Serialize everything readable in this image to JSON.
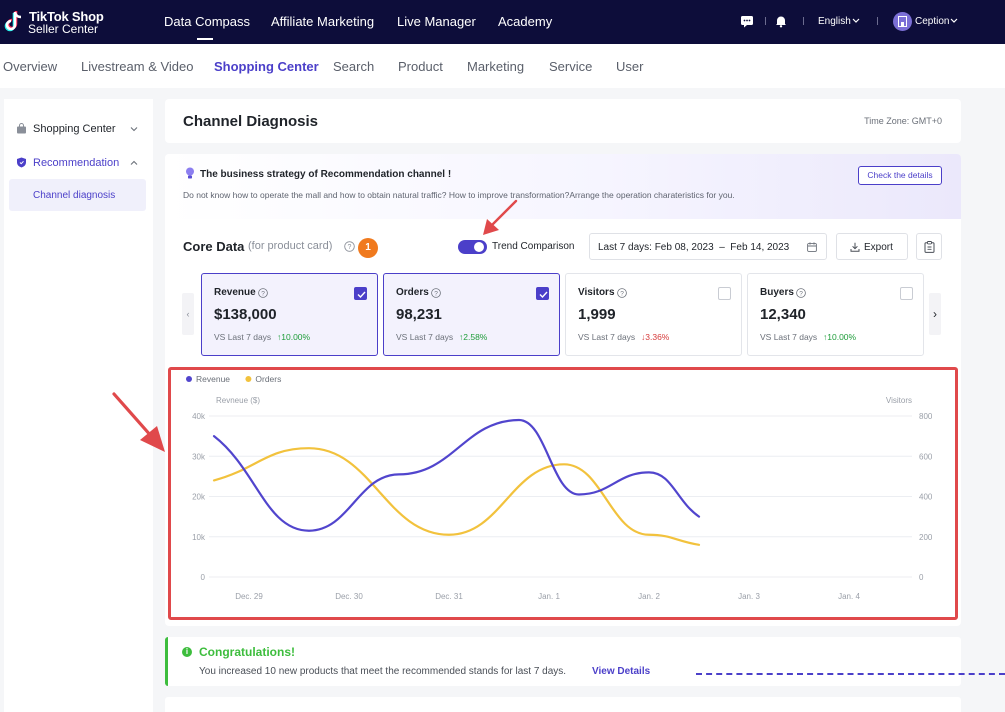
{
  "topbar": {
    "logo_line1": "TikTok Shop",
    "logo_line2": "Seller Center",
    "nav": [
      "Data Compass",
      "Affiliate Marketing",
      "Live Manager",
      "Academy"
    ],
    "active_nav": "Data Compass",
    "language": "English",
    "user": "Ception"
  },
  "subnav": {
    "items": [
      "Overview",
      "Livestream & Video",
      "Shopping Center",
      "Search",
      "Product",
      "Marketing",
      "Service",
      "User"
    ],
    "active": "Shopping Center"
  },
  "sidebar": {
    "items": [
      {
        "label": "Shopping Center",
        "icon": "bag-icon",
        "expanded": false
      },
      {
        "label": "Recommendation",
        "icon": "shield-icon",
        "expanded": true
      }
    ],
    "sub_item": "Channel diagnosis"
  },
  "page": {
    "title": "Channel Diagnosis",
    "timezone": "Time Zone: GMT+0"
  },
  "banner": {
    "title": "The business strategy of Recommendation channel !",
    "description": "Do not know how to operate the mall and how to obtain natural traffic? How to improve transformation?Arrange the operation charateristics for you.",
    "button": "Check the details"
  },
  "core": {
    "title": "Core Data",
    "subtitle": "(for product card)",
    "badge": "1",
    "trend_label": "Trend Comparison",
    "trend_on": true,
    "date_range": "Last 7 days: Feb 08, 2023  –  Feb 14, 2023",
    "export": "Export",
    "prev_arrow": "‹",
    "next_arrow": "›"
  },
  "metrics": [
    {
      "label": "Revenue",
      "value": "$138,000",
      "vs": "VS Last 7 days",
      "change": "10.00%",
      "direction": "up",
      "selected": true
    },
    {
      "label": "Orders",
      "value": "98,231",
      "vs": "VS Last 7 days",
      "change": "2.58%",
      "direction": "up",
      "selected": true
    },
    {
      "label": "Visitors",
      "value": "1,999",
      "vs": "VS Last 7 days",
      "change": "3.36%",
      "direction": "down",
      "selected": false
    },
    {
      "label": "Buyers",
      "value": "12,340",
      "vs": "VS Last 7 days",
      "change": "10.00%",
      "direction": "up",
      "selected": false
    }
  ],
  "chart_data": {
    "type": "line",
    "categories": [
      "Dec. 29",
      "Dec. 30",
      "Dec. 31",
      "Jan. 1",
      "Jan. 2",
      "Jan. 3",
      "Jan. 4"
    ],
    "ylabel": "Revneue ($)",
    "ylabel_right": "Visitors",
    "ylim": [
      0,
      40000
    ],
    "ylim_right": [
      0,
      800
    ],
    "yticks_left": [
      "0",
      "10k",
      "20k",
      "30k",
      "40k"
    ],
    "yticks_right": [
      "0",
      "200",
      "400",
      "600",
      "800"
    ],
    "legend": "top-left",
    "grid": true,
    "series": [
      {
        "name": "Revenue",
        "color": "#5145cd",
        "x": [
          -0.35,
          0.6,
          1.5,
          2.7,
          3.3,
          4.0,
          4.5
        ],
        "y": [
          35000,
          11500,
          25500,
          39000,
          20500,
          26000,
          15000
        ]
      },
      {
        "name": "Orders",
        "color": "#f2c23d",
        "x": [
          -0.35,
          0.6,
          2.0,
          3.15,
          4.0,
          4.5
        ],
        "y": [
          24000,
          32000,
          10500,
          28000,
          10500,
          8000
        ]
      }
    ]
  },
  "congrats": {
    "title": "Congratulations!",
    "text": "You increased 10 new products that meet the recommended stands for last 7 days.",
    "link": "View Details"
  },
  "colors": {
    "brand": "#4b3fc9",
    "topbar": "#0d0d3a",
    "highlight": "#e0494b",
    "success": "#3dbd3d"
  }
}
